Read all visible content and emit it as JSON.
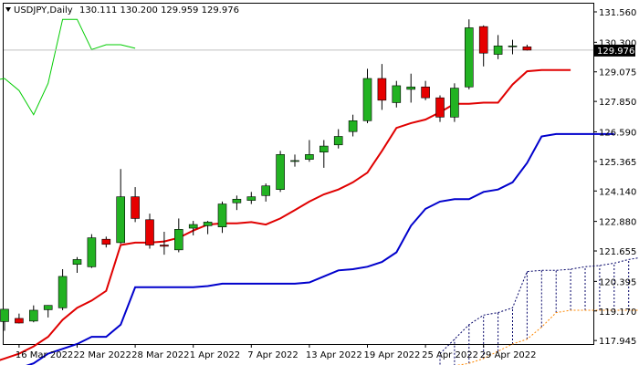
{
  "header": {
    "symbol": "USDJPY,Daily",
    "ohlc": "130.111 130.200 129.959 129.976"
  },
  "current_price_label": "129.976",
  "colors": {
    "bull": "#22b222",
    "bear": "#e60000",
    "tenkan": "#e00000",
    "kijun": "#0000cc",
    "chikou": "#00cc00",
    "span_a": "#ff8800",
    "span_b": "#000066",
    "price_line": "#c0c0c0"
  },
  "chart_data": {
    "type": "candlestick",
    "y_ticks": [
      "131.560",
      "130.300",
      "129.075",
      "127.850",
      "126.590",
      "125.365",
      "124.140",
      "122.880",
      "121.655",
      "120.395",
      "119.170",
      "117.945"
    ],
    "x_ticks": [
      "16 Mar 2022",
      "22 Mar 2022",
      "28 Mar 2022",
      "1 Apr 2022",
      "7 Apr 2022",
      "13 Apr 2022",
      "19 Apr 2022",
      "25 Apr 2022",
      "29 Apr 2022"
    ],
    "ylim": [
      117.8,
      131.9
    ],
    "candles": [
      {
        "date": "2022-03-15",
        "o": 118.73,
        "h": 119.1,
        "l": 118.35,
        "c": 119.24
      },
      {
        "date": "2022-03-16",
        "o": 118.86,
        "h": 119.06,
        "l": 118.65,
        "c": 118.67
      },
      {
        "date": "2022-03-17",
        "o": 118.75,
        "h": 119.4,
        "l": 118.7,
        "c": 119.2
      },
      {
        "date": "2022-03-18",
        "o": 119.22,
        "h": 119.41,
        "l": 118.9,
        "c": 119.4
      },
      {
        "date": "2022-03-21",
        "o": 119.3,
        "h": 120.9,
        "l": 119.2,
        "c": 120.6
      },
      {
        "date": "2022-03-22",
        "o": 121.1,
        "h": 121.4,
        "l": 120.75,
        "c": 121.3
      },
      {
        "date": "2022-03-23",
        "o": 121.0,
        "h": 122.35,
        "l": 120.95,
        "c": 122.2
      },
      {
        "date": "2022-03-24",
        "o": 122.14,
        "h": 122.25,
        "l": 121.8,
        "c": 121.93
      },
      {
        "date": "2022-03-25",
        "o": 122.0,
        "h": 125.05,
        "l": 121.95,
        "c": 123.9
      },
      {
        "date": "2022-03-28",
        "o": 123.9,
        "h": 124.3,
        "l": 122.85,
        "c": 123.0
      },
      {
        "date": "2022-03-29",
        "o": 122.95,
        "h": 123.2,
        "l": 121.75,
        "c": 121.9
      },
      {
        "date": "2022-03-30",
        "o": 121.9,
        "h": 122.45,
        "l": 121.5,
        "c": 121.85
      },
      {
        "date": "2022-03-31",
        "o": 121.7,
        "h": 123.0,
        "l": 121.6,
        "c": 122.55
      },
      {
        "date": "2022-04-01",
        "o": 122.6,
        "h": 122.9,
        "l": 122.3,
        "c": 122.75
      },
      {
        "date": "2022-04-04",
        "o": 122.7,
        "h": 122.9,
        "l": 122.35,
        "c": 122.85
      },
      {
        "date": "2022-04-05",
        "o": 122.65,
        "h": 123.7,
        "l": 122.4,
        "c": 123.6
      },
      {
        "date": "2022-04-06",
        "o": 123.65,
        "h": 123.95,
        "l": 123.35,
        "c": 123.8
      },
      {
        "date": "2022-04-07",
        "o": 123.75,
        "h": 124.1,
        "l": 123.6,
        "c": 123.9
      },
      {
        "date": "2022-04-08",
        "o": 123.95,
        "h": 124.45,
        "l": 123.7,
        "c": 124.35
      },
      {
        "date": "2022-04-11",
        "o": 124.2,
        "h": 125.8,
        "l": 124.1,
        "c": 125.65
      },
      {
        "date": "2022-04-12",
        "o": 125.4,
        "h": 125.65,
        "l": 125.15,
        "c": 125.4
      },
      {
        "date": "2022-04-13",
        "o": 125.45,
        "h": 126.25,
        "l": 125.35,
        "c": 125.65
      },
      {
        "date": "2022-04-14",
        "o": 125.75,
        "h": 126.25,
        "l": 125.1,
        "c": 126.0
      },
      {
        "date": "2022-04-15",
        "o": 126.05,
        "h": 126.7,
        "l": 125.9,
        "c": 126.4
      },
      {
        "date": "2022-04-18",
        "o": 126.6,
        "h": 127.3,
        "l": 126.4,
        "c": 127.05
      },
      {
        "date": "2022-04-19",
        "o": 127.05,
        "h": 129.2,
        "l": 126.95,
        "c": 128.8
      },
      {
        "date": "2022-04-20",
        "o": 128.8,
        "h": 129.4,
        "l": 127.5,
        "c": 127.9
      },
      {
        "date": "2022-04-21",
        "o": 127.8,
        "h": 128.7,
        "l": 127.6,
        "c": 128.5
      },
      {
        "date": "2022-04-22",
        "o": 128.35,
        "h": 129.0,
        "l": 127.8,
        "c": 128.45
      },
      {
        "date": "2022-04-25",
        "o": 128.45,
        "h": 128.7,
        "l": 127.9,
        "c": 128.0
      },
      {
        "date": "2022-04-26",
        "o": 128.0,
        "h": 128.1,
        "l": 127.0,
        "c": 127.2
      },
      {
        "date": "2022-04-27",
        "o": 127.2,
        "h": 128.6,
        "l": 127.0,
        "c": 128.4
      },
      {
        "date": "2022-04-28",
        "o": 128.45,
        "h": 131.25,
        "l": 128.35,
        "c": 130.9
      },
      {
        "date": "2022-04-29",
        "o": 130.95,
        "h": 131.0,
        "l": 129.3,
        "c": 129.85
      },
      {
        "date": "2022-05-02",
        "o": 129.8,
        "h": 130.6,
        "l": 129.6,
        "c": 130.15
      },
      {
        "date": "2022-05-03",
        "o": 130.15,
        "h": 130.4,
        "l": 129.8,
        "c": 130.15
      },
      {
        "date": "2022-05-04",
        "o": 130.11,
        "h": 130.2,
        "l": 129.959,
        "c": 129.976
      }
    ],
    "tenkan_sen": [
      117.0,
      117.2,
      117.4,
      117.7,
      118.1,
      118.8,
      119.3,
      119.6,
      120.0,
      121.9,
      122.0,
      122.0,
      122.05,
      122.2,
      122.5,
      122.75,
      122.8,
      122.8,
      122.85,
      122.75,
      123.0,
      123.35,
      123.7,
      124.0,
      124.2,
      124.5,
      124.9,
      125.8,
      126.75,
      126.95,
      127.1,
      127.4,
      127.75,
      127.75,
      127.8,
      127.8,
      128.55,
      129.1,
      129.15,
      129.15,
      129.15
    ],
    "kijun_sen": [
      116.5,
      116.7,
      116.8,
      117.0,
      117.4,
      117.6,
      117.8,
      118.1,
      118.1,
      118.6,
      120.15,
      120.15,
      120.15,
      120.15,
      120.15,
      120.2,
      120.3,
      120.3,
      120.3,
      120.3,
      120.3,
      120.3,
      120.35,
      120.6,
      120.85,
      120.9,
      121.0,
      121.2,
      121.6,
      122.7,
      123.4,
      123.7,
      123.8,
      123.8,
      124.1,
      124.2,
      124.5,
      125.3,
      126.4,
      126.5,
      126.5,
      126.5,
      126.5,
      126.5
    ],
    "chikou_span": [
      128.7,
      128.8,
      128.3,
      127.3,
      128.6,
      131.25,
      131.25,
      130.0,
      130.2,
      130.2,
      130.05
    ],
    "senkou_span_a": [
      116.8,
      116.9,
      117.0,
      117.2,
      117.5,
      117.8,
      118.0,
      118.5,
      119.1,
      119.2,
      119.2,
      119.2,
      119.2,
      119.2,
      119.2,
      119.2,
      119.2,
      119.2
    ],
    "senkou_span_b": [
      117.4,
      118.0,
      118.6,
      119.0,
      119.1,
      119.3,
      120.8,
      120.85,
      120.85,
      120.9,
      121.0,
      121.05,
      121.15,
      121.3,
      121.4,
      121.5,
      121.6,
      121.6
    ]
  }
}
